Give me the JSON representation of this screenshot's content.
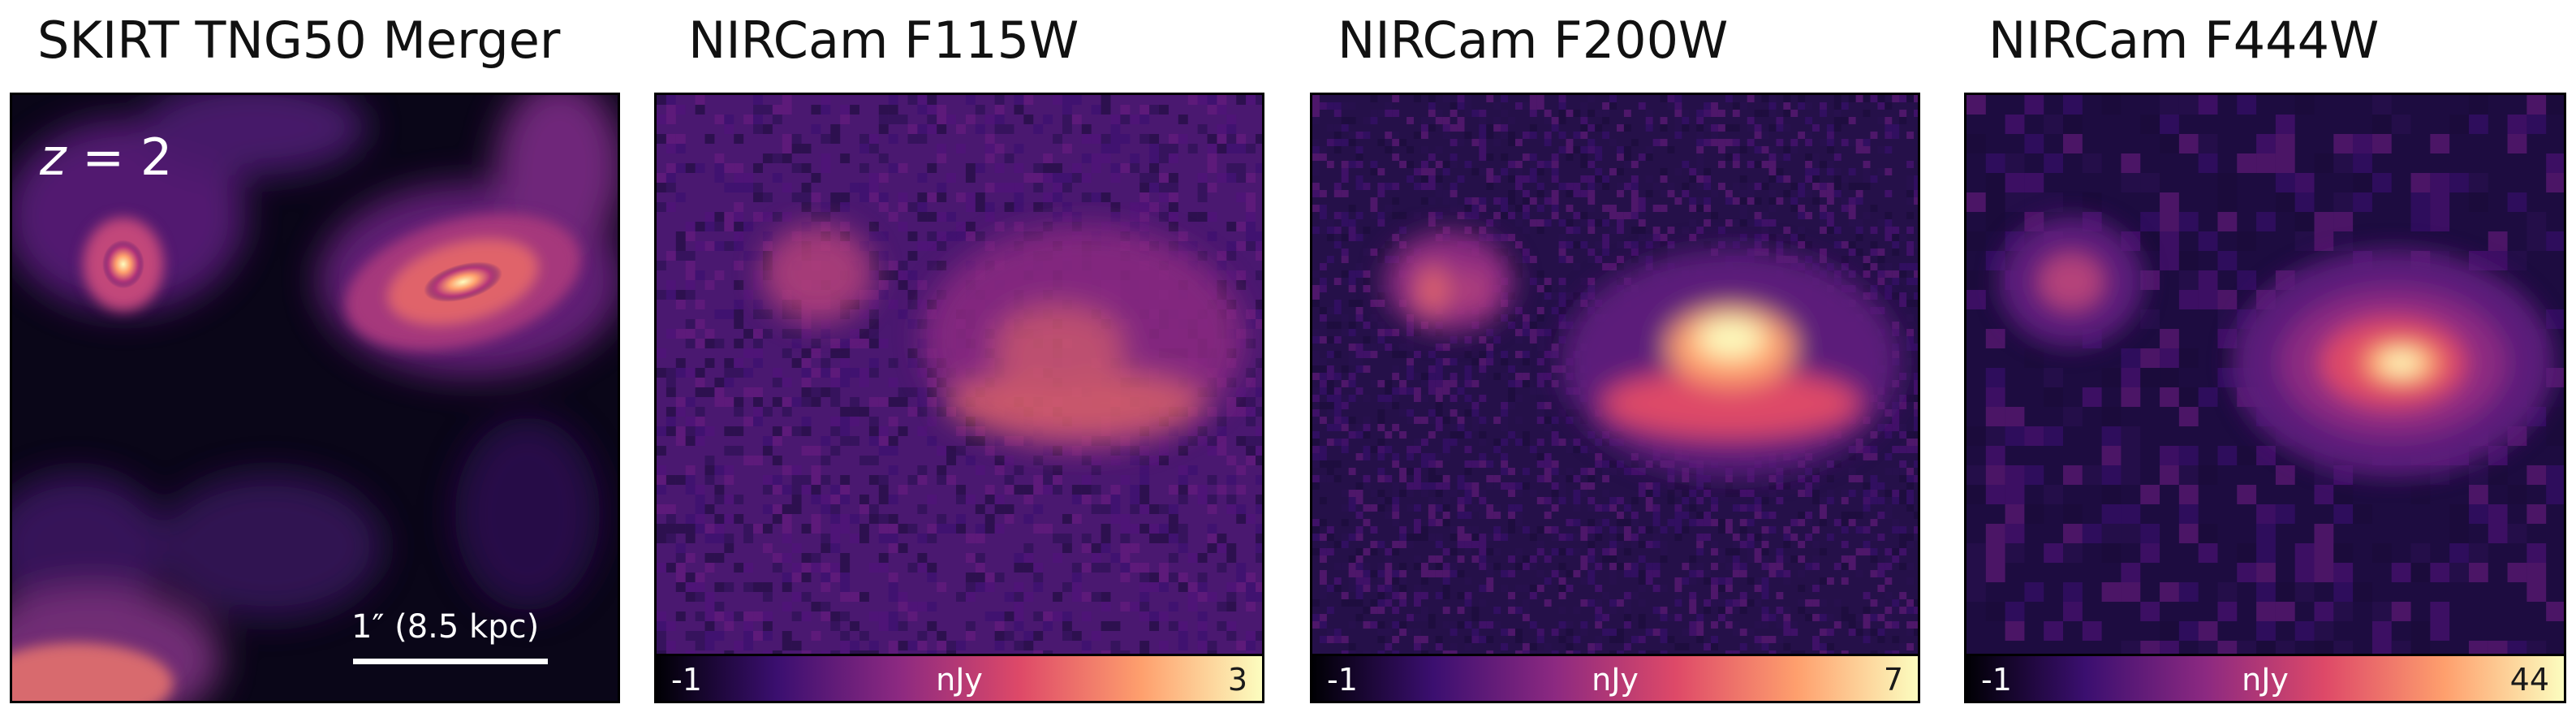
{
  "panels": [
    {
      "title": "SKIRT TNG50 Merger",
      "redshift_var": "z",
      "redshift_rest": " = 2",
      "scale_label": "1″ (8.5 kpc)"
    },
    {
      "title": "NIRCam F115W",
      "colorbar": {
        "min": "-1",
        "unit": "nJy",
        "max": "3"
      }
    },
    {
      "title": "NIRCam F200W",
      "colorbar": {
        "min": "-1",
        "unit": "nJy",
        "max": "7"
      }
    },
    {
      "title": "NIRCam F444W",
      "colorbar": {
        "min": "-1",
        "unit": "nJy",
        "max": "44"
      }
    }
  ],
  "colormap": [
    "#000004",
    "#3b0f70",
    "#8c2981",
    "#de4968",
    "#fe9f6d",
    "#fcfdbf"
  ]
}
